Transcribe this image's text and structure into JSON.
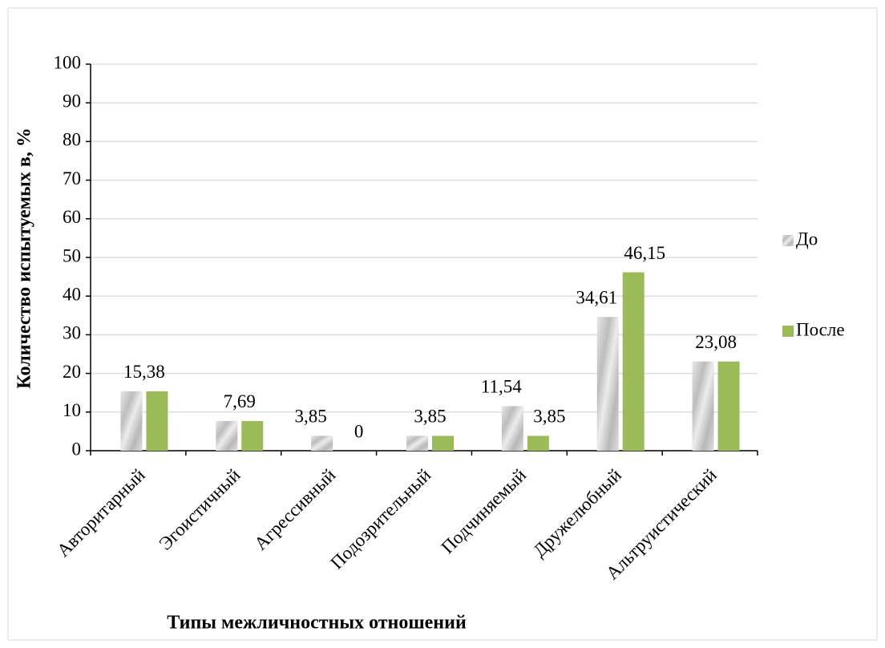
{
  "chart_data": {
    "type": "bar",
    "xlabel": "Типы межличностных отношений",
    "ylabel": "Количество испытуемых в, %",
    "categories": [
      "Авторитарный",
      "Эгоистичный",
      "Агрессивный",
      "Подозрительный",
      "Подчиняемый",
      "Дружелюбный",
      "Альтруистический"
    ],
    "series": [
      {
        "name": "До",
        "color": "#cfcfcf",
        "values": [
          15.38,
          7.69,
          3.85,
          3.85,
          11.54,
          34.61,
          23.08
        ],
        "value_labels": [
          "15,38",
          "7,69",
          "3,85",
          null,
          "11,54",
          "34,61",
          "23,08"
        ]
      },
      {
        "name": "После",
        "color": "#9bbb59",
        "values": [
          15.38,
          7.69,
          0,
          3.85,
          3.85,
          46.15,
          23.08
        ],
        "value_labels": [
          null,
          null,
          "0",
          "3,85",
          "3,85",
          "46,15",
          null
        ]
      }
    ],
    "ylim": [
      0,
      100
    ],
    "yticks": [
      0,
      10,
      20,
      30,
      40,
      50,
      60,
      70,
      80,
      90,
      100
    ],
    "grid": true,
    "legend": "right"
  }
}
